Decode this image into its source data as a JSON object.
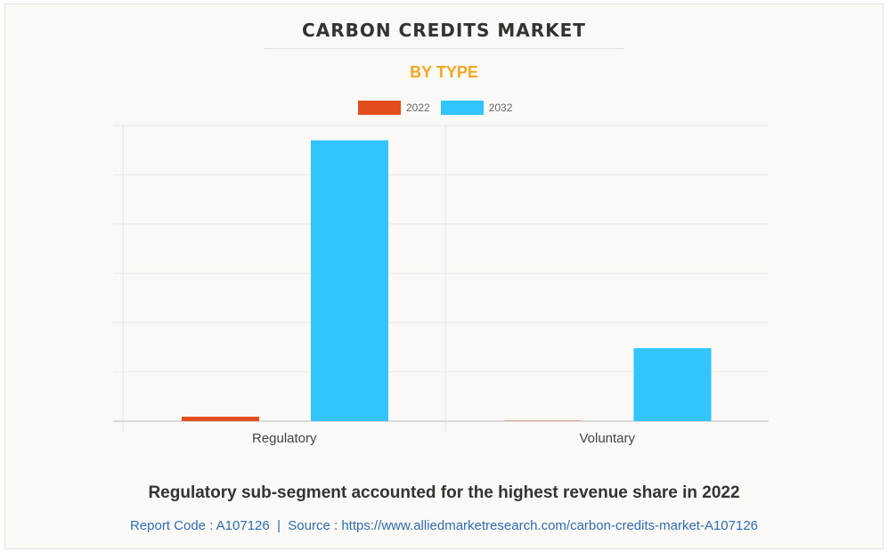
{
  "header": {
    "title": "CARBON CREDITS MARKET",
    "subtitle": "BY TYPE"
  },
  "colors": {
    "s2022": "#e24d1c",
    "s2032": "#31c4fd",
    "subtitle": "#f5a623",
    "link": "#2f6db5"
  },
  "chart_data": {
    "type": "bar",
    "title": "CARBON CREDITS MARKET",
    "subtitle": "BY TYPE",
    "categories": [
      "Regulatory",
      "Voluntary"
    ],
    "series": [
      {
        "name": "2022",
        "values": [
          0.09,
          0.02
        ]
      },
      {
        "name": "2032",
        "values": [
          5.7,
          1.48
        ]
      }
    ],
    "xlabel": "",
    "ylabel": "",
    "ylim": [
      0,
      6
    ],
    "grid": true,
    "legend": "top-center",
    "note": "y-axis values unlabeled; relative units estimated from gridlines"
  },
  "footer": {
    "headline": "Regulatory sub-segment accounted for the highest revenue share in 2022",
    "source": "Report Code : A107126  |  Source : https://www.alliedmarketresearch.com/carbon-credits-market-A107126"
  }
}
